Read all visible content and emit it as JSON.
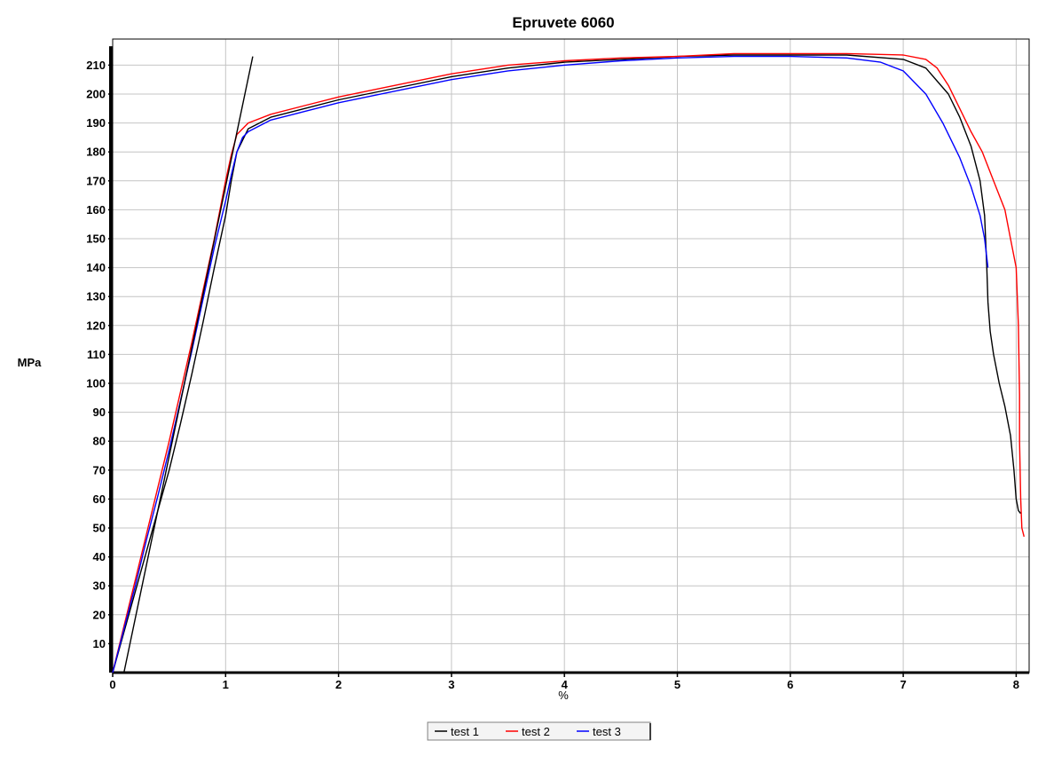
{
  "chart_data": {
    "type": "line",
    "title": "Epruvete 6060",
    "xlabel": "%",
    "ylabel": "MPa",
    "xlim": [
      0,
      8.15
    ],
    "ylim": [
      0,
      215
    ],
    "x_ticks": [
      0,
      1,
      2,
      3,
      4,
      5,
      6,
      7,
      8
    ],
    "y_ticks": [
      10,
      20,
      30,
      40,
      50,
      60,
      70,
      80,
      90,
      100,
      110,
      120,
      130,
      140,
      150,
      160,
      170,
      180,
      190,
      200,
      210
    ],
    "grid": true,
    "legend_position": "bottom-center",
    "series": [
      {
        "name": "test 1",
        "color": "#000000",
        "x": [
          0,
          0.1,
          0.2,
          0.3,
          0.4,
          0.5,
          0.6,
          0.7,
          0.8,
          0.9,
          1.0,
          1.05,
          1.1,
          1.2,
          1.4,
          1.7,
          2.0,
          2.5,
          3.0,
          3.5,
          4.0,
          4.5,
          5.0,
          5.5,
          6.0,
          6.5,
          7.0,
          7.2,
          7.4,
          7.5,
          7.6,
          7.68,
          7.72,
          7.74,
          7.75,
          7.77,
          7.8,
          7.85,
          7.9,
          7.95,
          7.98,
          8.0,
          8.02,
          8.04
        ],
        "y": [
          0,
          14,
          28,
          42,
          56,
          70,
          86,
          103,
          121,
          140,
          158,
          170,
          180,
          188,
          192,
          195,
          198,
          202,
          206,
          209,
          211,
          212,
          213,
          213.5,
          213.5,
          213.5,
          212,
          209,
          200,
          192,
          182,
          170,
          158,
          140,
          128,
          118,
          110,
          100,
          92,
          82,
          70,
          60,
          56,
          55
        ]
      },
      {
        "name": "test 2",
        "color": "#ff0000",
        "x": [
          0,
          0.1,
          0.2,
          0.3,
          0.4,
          0.5,
          0.6,
          0.7,
          0.8,
          0.9,
          1.0,
          1.05,
          1.1,
          1.2,
          1.4,
          1.7,
          2.0,
          2.5,
          3.0,
          3.5,
          4.0,
          4.5,
          5.0,
          5.5,
          6.0,
          6.5,
          7.0,
          7.2,
          7.3,
          7.4,
          7.5,
          7.6,
          7.7,
          7.8,
          7.9,
          7.95,
          8.0,
          8.02,
          8.03,
          8.03,
          8.04,
          8.05,
          8.07
        ],
        "y": [
          0,
          16,
          32,
          48,
          64,
          80,
          97,
          114,
          132,
          150,
          170,
          179,
          186,
          190,
          193,
          196,
          199,
          203,
          207,
          210,
          211.5,
          212.5,
          213,
          214,
          214,
          214,
          213.5,
          212,
          209,
          203,
          195,
          187,
          180,
          170,
          160,
          150,
          140,
          120,
          96,
          80,
          60,
          50,
          47
        ]
      },
      {
        "name": "test 3",
        "color": "#0000ff",
        "x": [
          0,
          0.1,
          0.2,
          0.3,
          0.4,
          0.5,
          0.6,
          0.7,
          0.8,
          0.9,
          1.0,
          1.05,
          1.1,
          1.15,
          1.2,
          1.4,
          1.7,
          2.0,
          2.5,
          3.0,
          3.5,
          4.0,
          4.5,
          5.0,
          5.5,
          6.0,
          6.5,
          6.8,
          7.0,
          7.2,
          7.35,
          7.5,
          7.6,
          7.68,
          7.72,
          7.75
        ],
        "y": [
          0,
          15,
          30,
          46,
          61,
          77,
          94,
          111,
          129,
          147,
          163,
          172,
          180,
          185,
          187,
          191,
          194,
          197,
          201,
          205,
          208,
          210,
          211.5,
          212.5,
          213,
          213,
          212.5,
          211,
          208,
          200,
          190,
          178,
          168,
          158,
          150,
          140
        ]
      },
      {
        "name": "",
        "color": "#000000",
        "x": [
          0.1,
          1.24
        ],
        "y": [
          0,
          213
        ]
      }
    ]
  }
}
